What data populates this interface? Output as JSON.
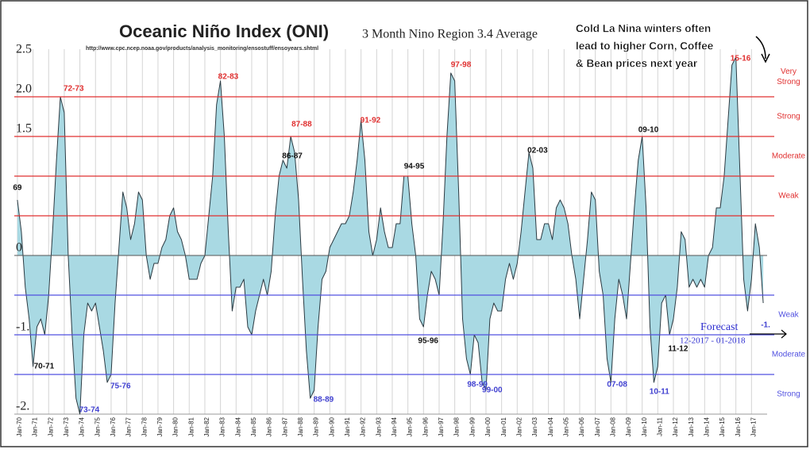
{
  "chart_data": {
    "type": "area",
    "title": "Oceanic Niño Index (ONI)",
    "subtitle": "3 Month Nino Region 3.4 Average",
    "source": "http://www.cpc.ncep.noaa.gov/products/analysis_monitoring/ensostuff/ensoyears.shtml",
    "note": [
      "Cold La Nina winters often",
      "lead to higher Corn, Coffee",
      "& Bean prices next year"
    ],
    "forecast": [
      "Forecast",
      "12-2017 - 01-2018"
    ],
    "color": "#a9d9e3",
    "line_color": "#2b3a42",
    "xlim": [
      1969.8,
      2018.0
    ],
    "ylim": [
      -2.0,
      2.5
    ],
    "yticks": [
      2.5,
      {
        "value": 2.0,
        "label": "2.0"
      },
      1.5,
      0,
      {
        "value": -1.0,
        "label": "-1."
      },
      {
        "value": -2.0,
        "label": "-2."
      }
    ],
    "xticks": [
      {
        "value": 1970,
        "label": "Jan-70"
      },
      {
        "value": 1971,
        "label": "Jan-71"
      },
      {
        "value": 1972,
        "label": "Jan-72"
      },
      {
        "value": 1973,
        "label": "Jan-73"
      },
      {
        "value": 1974,
        "label": "Jan-74"
      },
      {
        "value": 1975,
        "label": "Jan-75"
      },
      {
        "value": 1976,
        "label": "Jan-76"
      },
      {
        "value": 1977,
        "label": "Jan-77"
      },
      {
        "value": 1978,
        "label": "Jan-78"
      },
      {
        "value": 1979,
        "label": "Jan-79"
      },
      {
        "value": 1980,
        "label": "Jan-80"
      },
      {
        "value": 1981,
        "label": "Jan-81"
      },
      {
        "value": 1982,
        "label": "Jan-82"
      },
      {
        "value": 1983,
        "label": "Jan-83"
      },
      {
        "value": 1984,
        "label": "Jan-84"
      },
      {
        "value": 1985,
        "label": "Jan-85"
      },
      {
        "value": 1986,
        "label": "Jan-86"
      },
      {
        "value": 1987,
        "label": "Jan-87"
      },
      {
        "value": 1988,
        "label": "Jan-88"
      },
      {
        "value": 1989,
        "label": "Jan-89"
      },
      {
        "value": 1990,
        "label": "Jan-90"
      },
      {
        "value": 1991,
        "label": "Jan-91"
      },
      {
        "value": 1992,
        "label": "Jan-92"
      },
      {
        "value": 1993,
        "label": "Jan-93"
      },
      {
        "value": 1994,
        "label": "Jan-94"
      },
      {
        "value": 1995,
        "label": "Jan-95"
      },
      {
        "value": 1996,
        "label": "Jan-96"
      },
      {
        "value": 1997,
        "label": "Jan-97"
      },
      {
        "value": 1998,
        "label": "Jan-98"
      },
      {
        "value": 1999,
        "label": "Jan-99"
      },
      {
        "value": 2000,
        "label": "Jan-00"
      },
      {
        "value": 2001,
        "label": "Jan-01"
      },
      {
        "value": 2002,
        "label": "Jan-02"
      },
      {
        "value": 2003,
        "label": "Jan-03"
      },
      {
        "value": 2004,
        "label": "Jan-04"
      },
      {
        "value": 2005,
        "label": "Jan-05"
      },
      {
        "value": 2006,
        "label": "Jan-06"
      },
      {
        "value": 2007,
        "label": "Jan-07"
      },
      {
        "value": 2008,
        "label": "Jan-08"
      },
      {
        "value": 2009,
        "label": "Jan-09"
      },
      {
        "value": 2010,
        "label": "Jan-10"
      },
      {
        "value": 2011,
        "label": "Jan-11"
      },
      {
        "value": 2012,
        "label": "Jan-12"
      },
      {
        "value": 2013,
        "label": "Jan-13"
      },
      {
        "value": 2014,
        "label": "Jan-14"
      },
      {
        "value": 2015,
        "label": "Jan-15"
      },
      {
        "value": 2016,
        "label": "Jan-16"
      },
      {
        "value": 2017,
        "label": "Jan-17"
      }
    ],
    "grid": true,
    "thresholds": [
      {
        "value": 2.0,
        "color": "#e03030"
      },
      {
        "value": 1.5,
        "color": "#e03030"
      },
      {
        "value": 1.0,
        "color": "#e03030"
      },
      {
        "value": 0.5,
        "color": "#e03030"
      },
      {
        "value": -0.5,
        "color": "#5050e0"
      },
      {
        "value": -1.0,
        "color": "#5050e0"
      },
      {
        "value": -1.5,
        "color": "#5050e0"
      }
    ],
    "bands": [
      {
        "text": [
          "Very",
          "Strong"
        ],
        "y": 2.25,
        "color": "#e03030"
      },
      {
        "text": [
          "Strong"
        ],
        "y": 1.75,
        "color": "#e03030"
      },
      {
        "text": [
          "Moderate"
        ],
        "y": 1.25,
        "color": "#e03030"
      },
      {
        "text": [
          "Weak"
        ],
        "y": 0.75,
        "color": "#e03030"
      },
      {
        "text": [
          "Weak"
        ],
        "y": -0.75,
        "color": "#5050e0"
      },
      {
        "text": [
          "Moderate"
        ],
        "y": -1.25,
        "color": "#5050e0"
      },
      {
        "text": [
          "Strong"
        ],
        "y": -1.75,
        "color": "#5050e0"
      }
    ],
    "annotations": [
      {
        "text": "69",
        "x": 1970.0,
        "y": 0.85,
        "color": "#111"
      },
      {
        "text": "70-71",
        "x": 1971.7,
        "y": -1.4,
        "color": "#111"
      },
      {
        "text": "72-73",
        "x": 1973.6,
        "y": 2.1,
        "color": "#e03030"
      },
      {
        "text": "73-74",
        "x": 1974.6,
        "y": -1.95,
        "color": "#4040d0"
      },
      {
        "text": "75-76",
        "x": 1976.6,
        "y": -1.65,
        "color": "#4040d0"
      },
      {
        "text": "82-83",
        "x": 1983.5,
        "y": 2.25,
        "color": "#e03030"
      },
      {
        "text": "86-87",
        "x": 1987.6,
        "y": 1.25,
        "color": "#111"
      },
      {
        "text": "87-88",
        "x": 1988.2,
        "y": 1.65,
        "color": "#e03030"
      },
      {
        "text": "88-89",
        "x": 1989.6,
        "y": -1.82,
        "color": "#4040d0"
      },
      {
        "text": "91-92",
        "x": 1992.6,
        "y": 1.7,
        "color": "#e03030"
      },
      {
        "text": "94-95",
        "x": 1995.4,
        "y": 1.12,
        "color": "#111"
      },
      {
        "text": "95-96",
        "x": 1996.3,
        "y": -1.08,
        "color": "#111"
      },
      {
        "text": "97-98",
        "x": 1998.4,
        "y": 2.4,
        "color": "#e03030"
      },
      {
        "text": "98-99",
        "x": 1999.45,
        "y": -1.63,
        "color": "#4040d0"
      },
      {
        "text": "99-00",
        "x": 2000.4,
        "y": -1.7,
        "color": "#4040d0"
      },
      {
        "text": "02-03",
        "x": 2003.3,
        "y": 1.32,
        "color": "#111"
      },
      {
        "text": "07-08",
        "x": 2008.4,
        "y": -1.63,
        "color": "#4040d0"
      },
      {
        "text": "09-10",
        "x": 2010.4,
        "y": 1.58,
        "color": "#111"
      },
      {
        "text": "10-11",
        "x": 2011.1,
        "y": -1.72,
        "color": "#4040d0"
      },
      {
        "text": "11-12",
        "x": 2012.3,
        "y": -1.18,
        "color": "#111"
      },
      {
        "text": "15-16",
        "x": 2016.3,
        "y": 2.48,
        "color": "#e03030"
      },
      {
        "text": "-1.",
        "x": 2017.9,
        "y": -0.88,
        "color": "#4040d0"
      }
    ],
    "x": [
      1970,
      1970.25,
      1970.5,
      1970.75,
      1971,
      1971.25,
      1971.5,
      1971.75,
      1972,
      1972.25,
      1972.5,
      1972.75,
      1973,
      1973.25,
      1973.5,
      1973.75,
      1974,
      1974.25,
      1974.5,
      1974.75,
      1975,
      1975.25,
      1975.5,
      1975.75,
      1976,
      1976.25,
      1976.5,
      1976.75,
      1977,
      1977.25,
      1977.5,
      1977.75,
      1978,
      1978.25,
      1978.5,
      1978.75,
      1979,
      1979.25,
      1979.5,
      1979.75,
      1980,
      1980.25,
      1980.5,
      1980.75,
      1981,
      1981.25,
      1981.5,
      1981.75,
      1982,
      1982.25,
      1982.5,
      1982.75,
      1983,
      1983.25,
      1983.5,
      1983.75,
      1984,
      1984.25,
      1984.5,
      1984.75,
      1985,
      1985.25,
      1985.5,
      1985.75,
      1986,
      1986.25,
      1986.5,
      1986.75,
      1987,
      1987.25,
      1987.5,
      1987.75,
      1988,
      1988.25,
      1988.5,
      1988.75,
      1989,
      1989.25,
      1989.5,
      1989.75,
      1990,
      1990.25,
      1990.5,
      1990.75,
      1991,
      1991.25,
      1991.5,
      1991.75,
      1992,
      1992.25,
      1992.5,
      1992.75,
      1993,
      1993.25,
      1993.5,
      1993.75,
      1994,
      1994.25,
      1994.5,
      1994.75,
      1995,
      1995.25,
      1995.5,
      1995.75,
      1996,
      1996.25,
      1996.5,
      1996.75,
      1997,
      1997.25,
      1997.5,
      1997.75,
      1998,
      1998.25,
      1998.5,
      1998.75,
      1999,
      1999.25,
      1999.5,
      1999.75,
      2000,
      2000.25,
      2000.5,
      2000.75,
      2001,
      2001.25,
      2001.5,
      2001.75,
      2002,
      2002.25,
      2002.5,
      2002.75,
      2003,
      2003.25,
      2003.5,
      2003.75,
      2004,
      2004.25,
      2004.5,
      2004.75,
      2005,
      2005.25,
      2005.5,
      2005.75,
      2006,
      2006.25,
      2006.5,
      2006.75,
      2007,
      2007.25,
      2007.5,
      2007.75,
      2008,
      2008.25,
      2008.5,
      2008.75,
      2009,
      2009.25,
      2009.5,
      2009.75,
      2010,
      2010.25,
      2010.5,
      2010.75,
      2011,
      2011.25,
      2011.5,
      2011.75,
      2012,
      2012.25,
      2012.5,
      2012.75,
      2013,
      2013.25,
      2013.5,
      2013.75,
      2014,
      2014.25,
      2014.5,
      2014.75,
      2015,
      2015.25,
      2015.5,
      2015.75,
      2016,
      2016.25,
      2016.5,
      2016.75,
      2017,
      2017.25,
      2017.5,
      2017.75
    ],
    "values": [
      0.7,
      0.3,
      -0.4,
      -0.8,
      -1.4,
      -0.9,
      -0.8,
      -1.0,
      -0.5,
      0.3,
      1.2,
      2.0,
      1.8,
      0.0,
      -1.0,
      -1.8,
      -2.0,
      -1.0,
      -0.6,
      -0.7,
      -0.6,
      -0.9,
      -1.2,
      -1.6,
      -1.5,
      -0.6,
      0.1,
      0.8,
      0.6,
      0.2,
      0.4,
      0.8,
      0.7,
      0.0,
      -0.3,
      -0.1,
      -0.1,
      0.1,
      0.2,
      0.5,
      0.6,
      0.3,
      0.2,
      0.0,
      -0.3,
      -0.3,
      -0.3,
      -0.1,
      0.0,
      0.5,
      1.0,
      1.9,
      2.2,
      1.5,
      0.3,
      -0.7,
      -0.4,
      -0.4,
      -0.3,
      -0.9,
      -1.0,
      -0.7,
      -0.5,
      -0.3,
      -0.5,
      -0.2,
      0.5,
      1.0,
      1.2,
      1.1,
      1.5,
      1.3,
      0.7,
      -0.3,
      -1.2,
      -1.8,
      -1.7,
      -0.9,
      -0.3,
      -0.2,
      0.1,
      0.2,
      0.3,
      0.4,
      0.4,
      0.5,
      0.8,
      1.2,
      1.7,
      1.2,
      0.3,
      0.0,
      0.2,
      0.6,
      0.3,
      0.1,
      0.1,
      0.4,
      0.4,
      1.0,
      1.0,
      0.4,
      0.0,
      -0.8,
      -0.9,
      -0.5,
      -0.2,
      -0.3,
      -0.5,
      0.4,
      1.5,
      2.3,
      2.2,
      0.8,
      -0.8,
      -1.3,
      -1.5,
      -1.0,
      -1.1,
      -1.6,
      -1.7,
      -0.8,
      -0.6,
      -0.7,
      -0.7,
      -0.3,
      -0.1,
      -0.3,
      -0.1,
      0.3,
      0.8,
      1.3,
      1.1,
      0.2,
      0.2,
      0.4,
      0.4,
      0.2,
      0.6,
      0.7,
      0.6,
      0.4,
      0.0,
      -0.3,
      -0.8,
      -0.3,
      0.2,
      0.8,
      0.7,
      -0.2,
      -0.5,
      -1.3,
      -1.6,
      -0.8,
      -0.3,
      -0.5,
      -0.8,
      -0.1,
      0.6,
      1.2,
      1.5,
      0.6,
      -0.9,
      -1.6,
      -1.4,
      -0.6,
      -0.5,
      -1.0,
      -0.8,
      -0.4,
      0.3,
      0.2,
      -0.4,
      -0.3,
      -0.4,
      -0.3,
      -0.4,
      0.0,
      0.1,
      0.6,
      0.6,
      1.0,
      1.7,
      2.4,
      2.5,
      1.1,
      -0.3,
      -0.7,
      -0.3,
      0.4,
      0.1,
      -0.6
    ]
  }
}
